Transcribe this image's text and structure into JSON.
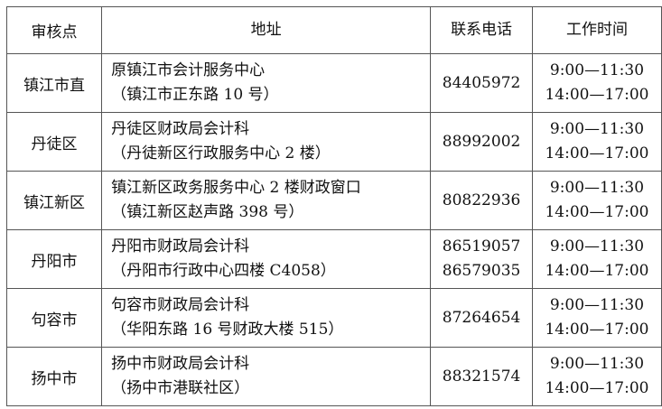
{
  "table": {
    "headers": [
      "审核点",
      "地址",
      "联系电话",
      "工作时间"
    ],
    "rows": [
      {
        "site": "镇江市直",
        "address": [
          "原镇江市会计服务中心",
          "（镇江市正东路 10 号）"
        ],
        "phones": [
          "84405972"
        ],
        "hours": [
          "9:00—11:30",
          "14:00—17:00"
        ]
      },
      {
        "site": "丹徒区",
        "address": [
          "丹徒区财政局会计科",
          "（丹徒新区行政服务中心 2 楼）"
        ],
        "phones": [
          "88992002"
        ],
        "hours": [
          "9:00—11:30",
          "14:00—17:00"
        ]
      },
      {
        "site": "镇江新区",
        "address": [
          "镇江新区政务服务中心 2 楼财政窗口",
          "（镇江新区赵声路 398 号）"
        ],
        "phones": [
          "80822936"
        ],
        "hours": [
          "9:00—11:30",
          "14:00—17:00"
        ]
      },
      {
        "site": "丹阳市",
        "address": [
          "丹阳市财政局会计科",
          "（丹阳市行政中心四楼 C4058）"
        ],
        "phones": [
          "86519057",
          "86579035"
        ],
        "hours": [
          "9:00—11:30",
          "14:00—17:00"
        ]
      },
      {
        "site": "句容市",
        "address": [
          "句容市财政局会计科",
          "（华阳东路 16 号财政大楼 515）"
        ],
        "phones": [
          "87264654"
        ],
        "hours": [
          "9:00—11:30",
          "14:00—17:00"
        ]
      },
      {
        "site": "扬中市",
        "address": [
          "扬中市财政局会计科",
          "（扬中市港联社区）"
        ],
        "phones": [
          "88321574"
        ],
        "hours": [
          "9:00—11:30",
          "14:00—17:00"
        ]
      }
    ]
  }
}
